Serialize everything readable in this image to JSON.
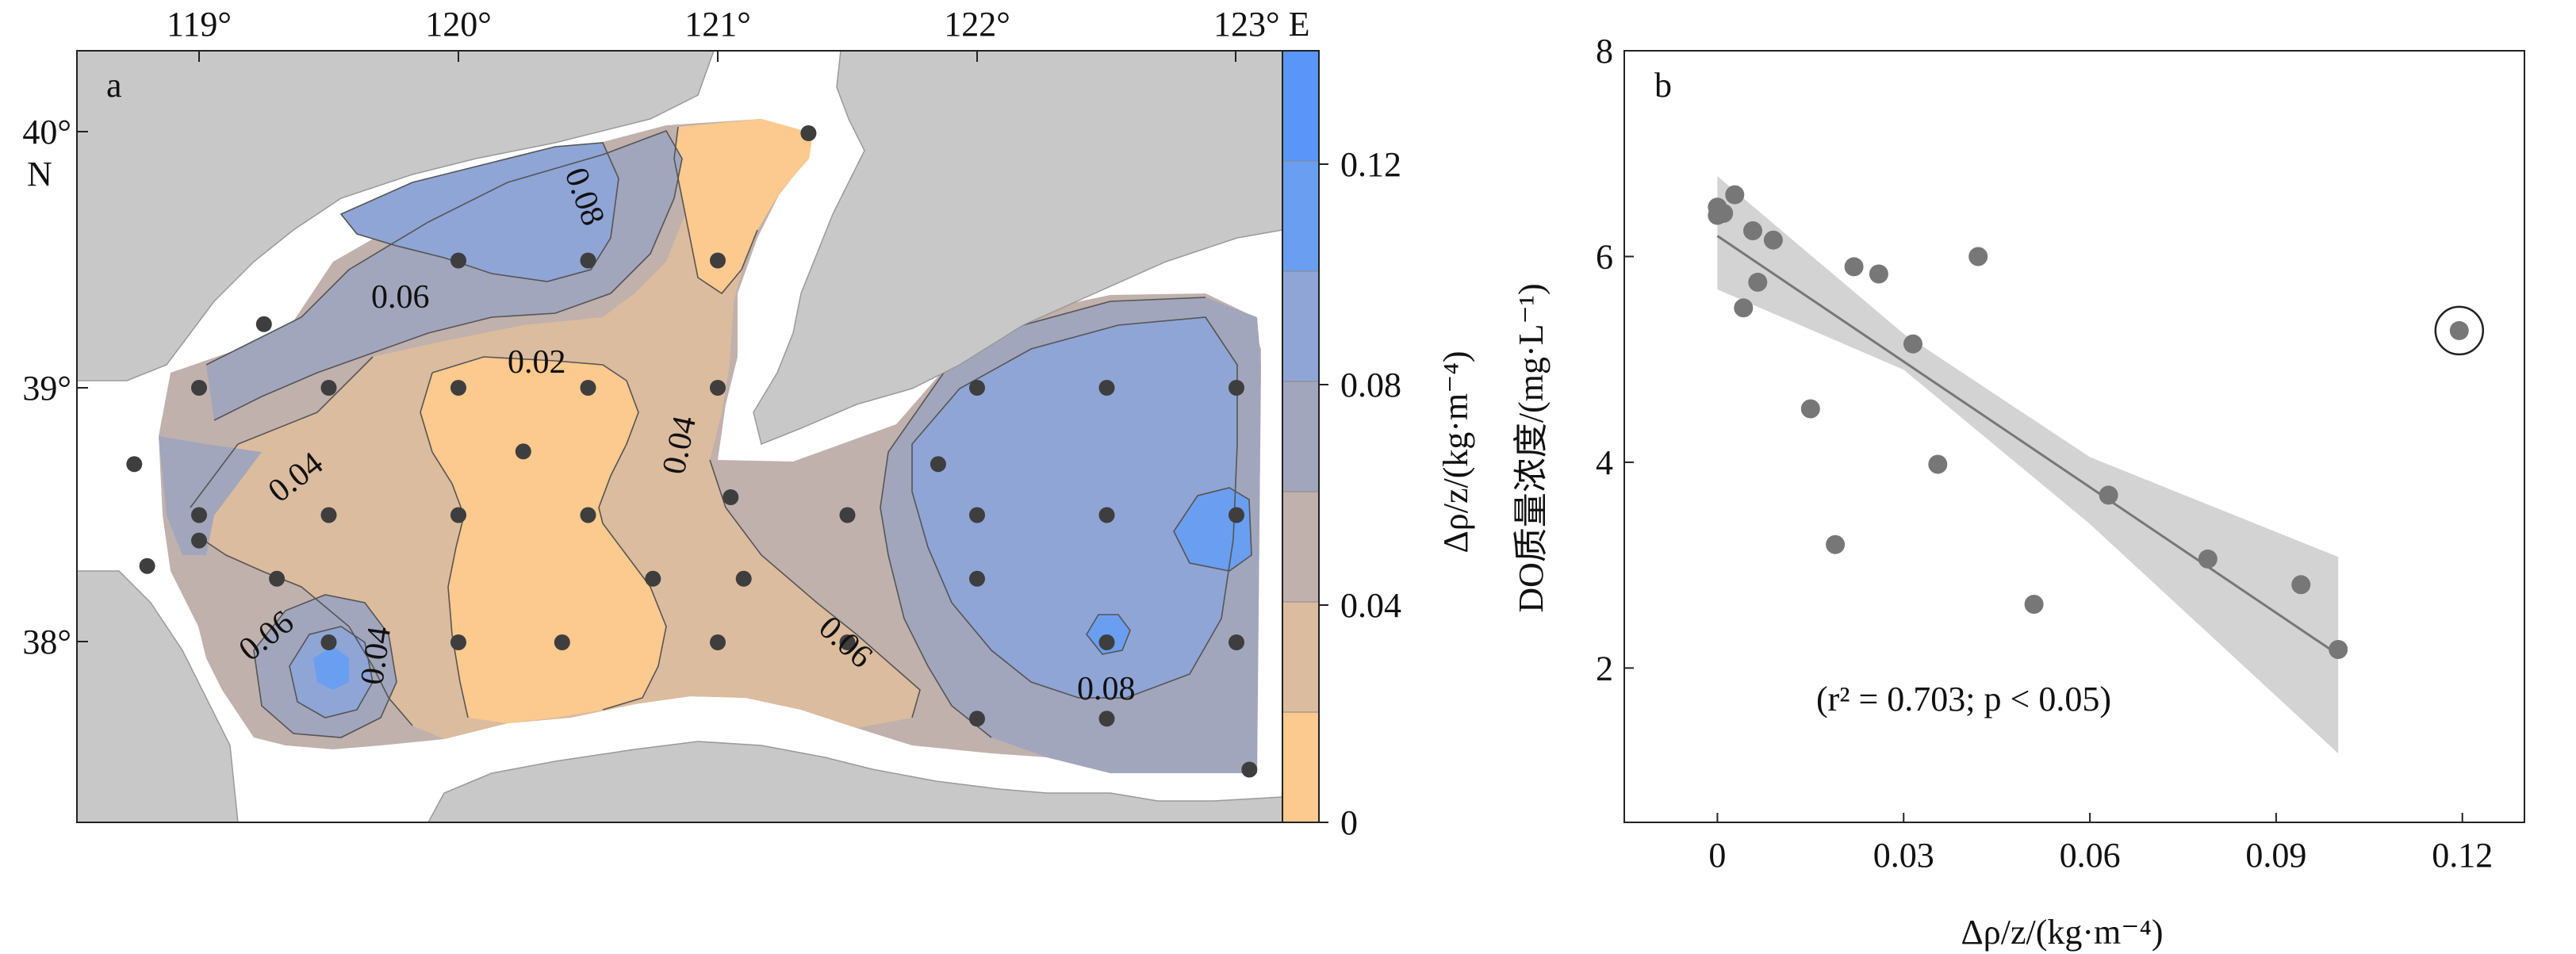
{
  "colors": {
    "land": "#c8c8c8",
    "water_nodata": "#ffffff",
    "bins": [
      "#fcc98e",
      "#dcbc9e",
      "#c0b1ad",
      "#a2a6bc",
      "#8fa5d6",
      "#6a9ef0",
      "#5a95f8"
    ],
    "contour_line": "#555555",
    "station": "#3e3e3e",
    "scatter_point": "#777777",
    "regression_line": "#777777",
    "confidence_band": "#d3d3d3"
  },
  "panel_a": {
    "label": "a",
    "lon_labels": [
      "119°",
      "120°",
      "121°",
      "122°",
      "123° E"
    ],
    "lat_labels": [
      "40°",
      "N",
      "39°",
      "38°"
    ],
    "colorbar": {
      "ticks": [
        "0.12",
        "0.08",
        "0.04",
        "0"
      ],
      "title": "Δρ/z/(kg·m⁻⁴)",
      "bin_edges": [
        0,
        0.02,
        0.04,
        0.06,
        0.08,
        0.1,
        0.12,
        0.14
      ]
    },
    "contour_labels": [
      "0.08",
      "0.06",
      "0.02",
      "0.04",
      "0.04",
      "0.06",
      "0.04",
      "0.06",
      "0.08"
    ],
    "stations": [
      [
        121.35,
        40.0
      ],
      [
        120.0,
        39.5
      ],
      [
        120.5,
        39.5
      ],
      [
        121.0,
        39.5
      ],
      [
        119.25,
        39.25
      ],
      [
        119.0,
        39.0
      ],
      [
        119.5,
        39.0
      ],
      [
        120.0,
        39.0
      ],
      [
        120.5,
        39.0
      ],
      [
        121.0,
        39.0
      ],
      [
        122.0,
        39.0
      ],
      [
        122.5,
        39.0
      ],
      [
        123.0,
        39.0
      ],
      [
        120.25,
        38.75
      ],
      [
        118.75,
        38.7
      ],
      [
        121.85,
        38.7
      ],
      [
        119.0,
        38.5
      ],
      [
        119.5,
        38.5
      ],
      [
        120.0,
        38.5
      ],
      [
        120.5,
        38.5
      ],
      [
        121.05,
        38.57
      ],
      [
        121.5,
        38.5
      ],
      [
        122.0,
        38.5
      ],
      [
        122.5,
        38.5
      ],
      [
        123.0,
        38.5
      ],
      [
        119.0,
        38.4
      ],
      [
        118.8,
        38.3
      ],
      [
        119.3,
        38.25
      ],
      [
        120.75,
        38.25
      ],
      [
        121.1,
        38.25
      ],
      [
        122.0,
        38.25
      ],
      [
        119.5,
        38.0
      ],
      [
        120.0,
        38.0
      ],
      [
        120.4,
        38.0
      ],
      [
        121.0,
        38.0
      ],
      [
        121.5,
        38.0
      ],
      [
        122.5,
        38.0
      ],
      [
        123.0,
        38.0
      ],
      [
        122.0,
        37.7
      ],
      [
        122.5,
        37.7
      ],
      [
        123.05,
        37.5
      ]
    ]
  },
  "chart_data": {
    "type": "scatter",
    "panel_label": "b",
    "xlabel": "Δρ/z/(kg·m⁻⁴)",
    "ylabel": "DO质量浓度/(mg·L⁻¹)",
    "xlim": [
      -0.015,
      0.13
    ],
    "ylim": [
      0.5,
      8
    ],
    "x_ticks": [
      0,
      0.03,
      0.06,
      0.09,
      0.12
    ],
    "x_tick_labels": [
      "0",
      "0.03",
      "0.06",
      "0.09",
      "0.12"
    ],
    "y_ticks": [
      2,
      4,
      6,
      8
    ],
    "y_tick_labels": [
      "2",
      "4",
      "6",
      "8"
    ],
    "annotation": "(r² = 0.703; p < 0.05)",
    "points": [
      {
        "x": 0.0,
        "y": 6.48
      },
      {
        "x": 0.0,
        "y": 6.4
      },
      {
        "x": 0.001,
        "y": 6.42
      },
      {
        "x": 0.0028,
        "y": 6.6
      },
      {
        "x": 0.0042,
        "y": 5.5
      },
      {
        "x": 0.0057,
        "y": 6.25
      },
      {
        "x": 0.0065,
        "y": 5.75
      },
      {
        "x": 0.009,
        "y": 6.16
      },
      {
        "x": 0.015,
        "y": 4.52
      },
      {
        "x": 0.019,
        "y": 3.2
      },
      {
        "x": 0.022,
        "y": 5.9
      },
      {
        "x": 0.026,
        "y": 5.83
      },
      {
        "x": 0.0315,
        "y": 5.15
      },
      {
        "x": 0.0355,
        "y": 3.98
      },
      {
        "x": 0.042,
        "y": 6.0
      },
      {
        "x": 0.051,
        "y": 2.62
      },
      {
        "x": 0.063,
        "y": 3.68
      },
      {
        "x": 0.079,
        "y": 3.06
      },
      {
        "x": 0.094,
        "y": 2.81
      },
      {
        "x": 0.1,
        "y": 2.18
      },
      {
        "x": 0.1195,
        "y": 5.28,
        "outlier": true
      }
    ],
    "regression": {
      "x": [
        0,
        0.1
      ],
      "y": [
        6.2,
        2.13
      ]
    },
    "band_upper": [
      [
        0,
        6.78
      ],
      [
        0.03,
        5.25
      ],
      [
        0.06,
        4.05
      ],
      [
        0.1,
        3.08
      ]
    ],
    "band_lower": [
      [
        0,
        5.68
      ],
      [
        0.03,
        4.9
      ],
      [
        0.06,
        3.4
      ],
      [
        0.1,
        1.17
      ]
    ]
  }
}
